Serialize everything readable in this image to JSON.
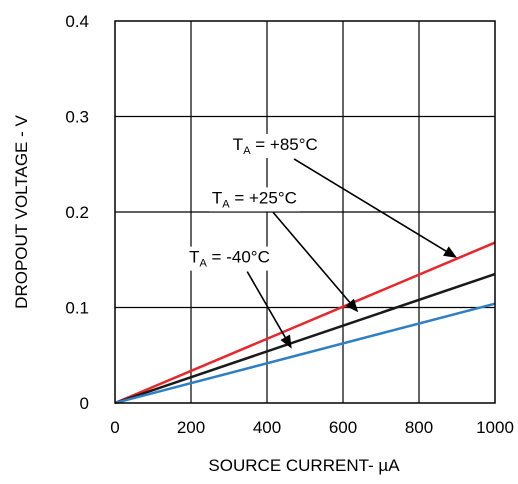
{
  "chart_data": {
    "type": "line",
    "xlabel": "SOURCE CURRENT- µA",
    "ylabel": "DROPOUT VOLTAGE - V",
    "xlim": [
      0,
      1000
    ],
    "ylim": [
      0,
      0.4
    ],
    "x_ticks": [
      0,
      200,
      400,
      600,
      800,
      1000
    ],
    "x_tick_labels": [
      "0",
      "200",
      "400",
      "600",
      "800",
      "1000"
    ],
    "y_ticks": [
      0,
      0.1,
      0.2,
      0.3,
      0.4
    ],
    "y_tick_labels": [
      "0",
      "0.1",
      "0.2",
      "0.3",
      "0.4"
    ],
    "grid": true,
    "series": [
      {
        "name": "T_A = +85°C",
        "color": "#e8262b",
        "x": [
          0,
          1000
        ],
        "y": [
          0,
          0.168
        ]
      },
      {
        "name": "T_A = +25°C",
        "color": "#1a1a1a",
        "x": [
          0,
          1000
        ],
        "y": [
          0,
          0.135
        ]
      },
      {
        "name": "T_A = -40°C",
        "color": "#2f7fc4",
        "x": [
          0,
          1000
        ],
        "y": [
          0,
          0.104
        ]
      }
    ],
    "annotations": [
      {
        "prefix": "T",
        "sub": "A",
        "suffix": " = +85°C",
        "series": 0,
        "tx": 310,
        "ty": 0.265,
        "ax": 900,
        "ay": 0.152
      },
      {
        "prefix": "T",
        "sub": "A",
        "suffix": " = +25°C",
        "series": 1,
        "tx": 255,
        "ty": 0.209,
        "ax": 640,
        "ay": 0.095
      },
      {
        "prefix": "T",
        "sub": "A",
        "suffix": " = -40°C",
        "series": 2,
        "tx": 195,
        "ty": 0.147,
        "ax": 465,
        "ay": 0.057
      }
    ]
  }
}
